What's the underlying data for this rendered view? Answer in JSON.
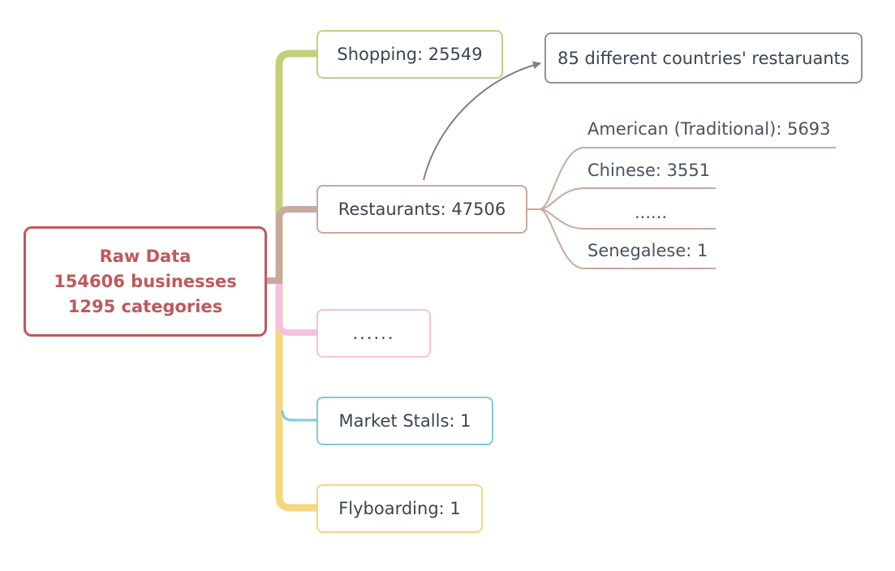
{
  "root": {
    "line1": "Raw Data",
    "line2": "154606 businesses",
    "line3": "1295 categories",
    "color": "#c0585c"
  },
  "categories": [
    {
      "label": "Shopping: 25549",
      "color": "#c5cf78"
    },
    {
      "label": "Restaurants: 47506",
      "color": "#c6a99f"
    },
    {
      "label": "......",
      "color": "#f6c1de"
    },
    {
      "label": "Market Stalls: 1",
      "color": "#7ecad6"
    },
    {
      "label": "Flyboarding: 1",
      "color": "#f5d57e"
    }
  ],
  "restaurants": {
    "note": "85 different countries' restaruants",
    "note_color": "#8a94a2",
    "subcategories": [
      "American (Traditional): 5693",
      "Chinese: 3551",
      "......",
      "Senegalese: 1"
    ]
  }
}
